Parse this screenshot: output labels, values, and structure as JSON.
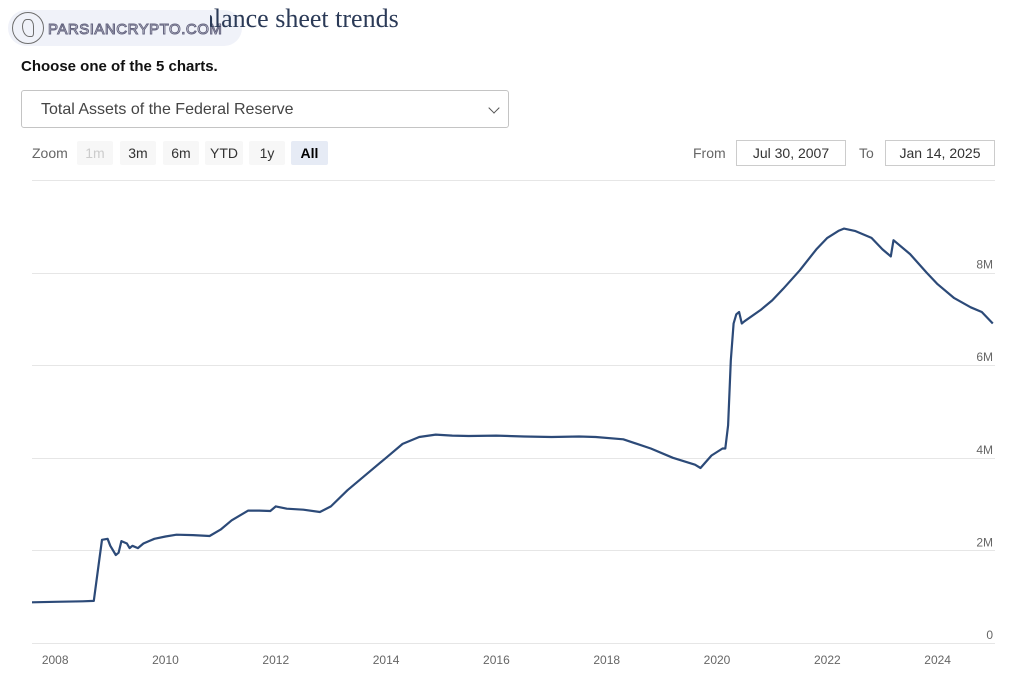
{
  "header": {
    "watermark_text": "PARSIANCRYPTO.COM",
    "title": "Balance sheet trends"
  },
  "prompt": "Choose one of the 5 charts.",
  "chart_select": {
    "selected": "Total Assets of the Federal Reserve"
  },
  "zoom": {
    "label": "Zoom",
    "buttons": [
      {
        "label": "1m",
        "state": "disabled"
      },
      {
        "label": "3m",
        "state": "normal"
      },
      {
        "label": "6m",
        "state": "normal"
      },
      {
        "label": "YTD",
        "state": "normal"
      },
      {
        "label": "1y",
        "state": "normal"
      },
      {
        "label": "All",
        "state": "active"
      }
    ]
  },
  "range": {
    "from_label": "From",
    "from_value": "Jul 30, 2007",
    "to_label": "To",
    "to_value": "Jan 14, 2025"
  },
  "colors": {
    "line": "#2c4a78",
    "grid": "#e6e6e6",
    "axis_text": "#666666"
  },
  "chart_data": {
    "type": "line",
    "title": "",
    "xlabel": "",
    "ylabel": "",
    "x_ticks": [
      "2008",
      "2010",
      "2012",
      "2014",
      "2016",
      "2018",
      "2020",
      "2022",
      "2024"
    ],
    "y_ticks": [
      "0",
      "2M",
      "4M",
      "6M",
      "8M"
    ],
    "xlim": [
      2007.58,
      2025.04
    ],
    "ylim": [
      0,
      10000000
    ],
    "grid": true,
    "legend": "none",
    "series": [
      {
        "name": "",
        "x": [
          2007.58,
          2008.0,
          2008.5,
          2008.7,
          2008.8,
          2008.85,
          2008.95,
          2009.0,
          2009.1,
          2009.15,
          2009.2,
          2009.3,
          2009.35,
          2009.4,
          2009.5,
          2009.6,
          2009.7,
          2009.8,
          2010.0,
          2010.2,
          2010.5,
          2010.8,
          2011.0,
          2011.2,
          2011.5,
          2011.7,
          2011.9,
          2012.0,
          2012.2,
          2012.5,
          2012.8,
          2013.0,
          2013.3,
          2013.6,
          2014.0,
          2014.3,
          2014.6,
          2014.9,
          2015.2,
          2015.5,
          2016.0,
          2016.5,
          2017.0,
          2017.5,
          2017.8,
          2018.3,
          2018.8,
          2019.2,
          2019.6,
          2019.7,
          2019.9,
          2020.1,
          2020.15,
          2020.2,
          2020.25,
          2020.3,
          2020.35,
          2020.4,
          2020.45,
          2020.5,
          2020.8,
          2021.0,
          2021.2,
          2021.5,
          2021.8,
          2022.0,
          2022.2,
          2022.3,
          2022.5,
          2022.8,
          2023.0,
          2023.15,
          2023.2,
          2023.5,
          2023.8,
          2024.0,
          2024.3,
          2024.6,
          2024.8,
          2025.0
        ],
        "values": [
          880000,
          890000,
          900000,
          910000,
          1800000,
          2230000,
          2250000,
          2100000,
          1900000,
          1950000,
          2200000,
          2150000,
          2050000,
          2100000,
          2050000,
          2150000,
          2200000,
          2250000,
          2300000,
          2340000,
          2330000,
          2310000,
          2450000,
          2650000,
          2860000,
          2860000,
          2850000,
          2950000,
          2900000,
          2880000,
          2830000,
          2950000,
          3300000,
          3600000,
          4000000,
          4300000,
          4450000,
          4500000,
          4480000,
          4470000,
          4480000,
          4460000,
          4450000,
          4460000,
          4450000,
          4400000,
          4200000,
          4000000,
          3850000,
          3780000,
          4050000,
          4200000,
          4200000,
          4700000,
          6100000,
          6900000,
          7100000,
          7150000,
          6900000,
          6950000,
          7200000,
          7400000,
          7650000,
          8050000,
          8500000,
          8750000,
          8900000,
          8950000,
          8900000,
          8750000,
          8500000,
          8350000,
          8700000,
          8400000,
          8000000,
          7750000,
          7450000,
          7250000,
          7150000,
          6900000
        ]
      }
    ]
  }
}
